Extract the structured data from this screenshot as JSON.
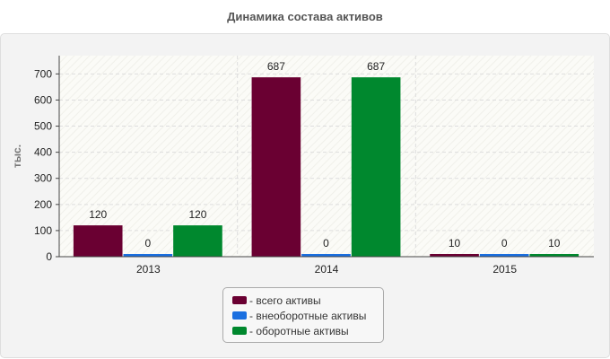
{
  "chart_data": {
    "type": "bar",
    "title": "Динамика состава активов",
    "ylabel": "тыс.",
    "xlabel": "",
    "categories": [
      "2013",
      "2014",
      "2015"
    ],
    "ylim": [
      0,
      770
    ],
    "yticks": [
      0,
      100,
      200,
      300,
      400,
      500,
      600,
      700
    ],
    "grid": true,
    "legend_position": "bottom-center",
    "series": [
      {
        "name": "всего активы",
        "values": [
          120,
          687,
          10
        ],
        "color": "#6a0032"
      },
      {
        "name": "внеоборотные активы",
        "values": [
          0,
          0,
          0
        ],
        "color": "#1a6fe0"
      },
      {
        "name": "оборотные активы",
        "values": [
          120,
          687,
          10
        ],
        "color": "#00882e"
      }
    ]
  }
}
